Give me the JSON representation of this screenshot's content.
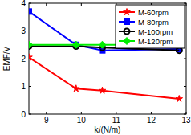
{
  "chart_data": {
    "type": "line",
    "x_label": "k/(N/m)",
    "y_label": "EMF/V",
    "x": [
      8.5,
      9.85,
      10.6,
      12.8
    ],
    "series": [
      {
        "name": "M-60rpm",
        "color": "#ff0000",
        "marker": "star",
        "values": [
          2.05,
          0.92,
          0.85,
          0.55
        ]
      },
      {
        "name": "M-80rpm",
        "color": "#0000ff",
        "marker": "square",
        "values": [
          3.7,
          2.5,
          2.3,
          2.35
        ]
      },
      {
        "name": "M-100rpm",
        "color": "#000000",
        "marker": "circle",
        "values": [
          2.45,
          2.45,
          2.4,
          2.3
        ]
      },
      {
        "name": "M-120rpm",
        "color": "#00ee00",
        "marker": "diamond",
        "values": [
          2.5,
          2.5,
          2.5,
          2.5
        ]
      }
    ],
    "xlim": [
      8.5,
      13
    ],
    "xticks": [
      9,
      10,
      11,
      12,
      13
    ],
    "ylim": [
      0,
      4
    ],
    "yticks": [
      0,
      1,
      2,
      3,
      4
    ],
    "legend": "upper right",
    "grid": false
  }
}
